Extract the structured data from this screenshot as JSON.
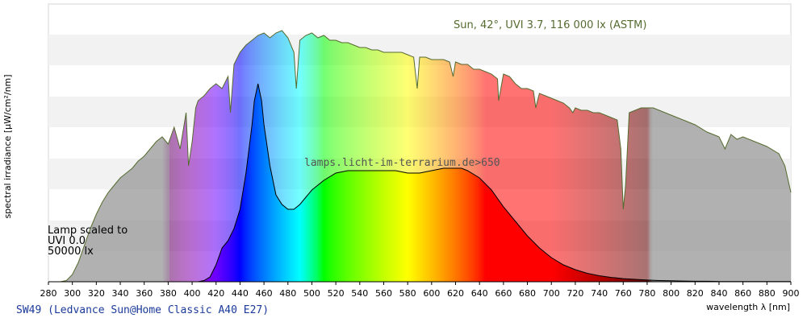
{
  "chart_data": {
    "type": "area",
    "title": "Sun, 42°, UVI 3.7, 116 000 lx (ASTM)",
    "watermark": "lamps.licht-im-terrarium.de>650",
    "lamp_note": [
      "Lamp scaled to",
      "UVI 0.0",
      "50000 lx"
    ],
    "xlabel": "wavelength λ [nm]",
    "ylabel": "spectral irradiance [µW/cm²/nm]",
    "xlim": [
      280,
      900
    ],
    "x_ticks": [
      280,
      300,
      320,
      340,
      360,
      380,
      400,
      420,
      440,
      460,
      480,
      500,
      520,
      540,
      560,
      580,
      600,
      620,
      640,
      660,
      680,
      700,
      720,
      740,
      760,
      780,
      800,
      820,
      840,
      860,
      880,
      900
    ],
    "ylim": [
      0,
      1
    ],
    "grid": "horizontal-bands",
    "series": [
      {
        "name": "",
        "style": "reference-sun",
        "x": [
          280,
          290,
          295,
          300,
          305,
          310,
          315,
          320,
          325,
          330,
          335,
          340,
          345,
          350,
          355,
          360,
          365,
          370,
          375,
          380,
          385,
          390,
          395,
          397,
          400,
          403,
          405,
          410,
          415,
          420,
          425,
          430,
          432,
          435,
          440,
          445,
          450,
          455,
          460,
          465,
          470,
          475,
          480,
          485,
          487,
          490,
          495,
          500,
          505,
          510,
          515,
          520,
          525,
          530,
          535,
          540,
          545,
          550,
          555,
          560,
          565,
          570,
          575,
          580,
          585,
          588,
          590,
          595,
          600,
          605,
          610,
          615,
          618,
          620,
          625,
          630,
          635,
          640,
          645,
          650,
          655,
          656,
          660,
          665,
          670,
          675,
          680,
          685,
          687,
          690,
          695,
          700,
          705,
          710,
          715,
          718,
          720,
          725,
          730,
          735,
          740,
          745,
          750,
          755,
          758,
          760,
          762,
          765,
          770,
          775,
          780,
          785,
          790,
          795,
          800,
          810,
          820,
          830,
          840,
          845,
          850,
          855,
          860,
          870,
          880,
          890,
          895,
          900
        ],
        "y": [
          0,
          0,
          0.005,
          0.03,
          0.08,
          0.15,
          0.22,
          0.28,
          0.33,
          0.37,
          0.4,
          0.43,
          0.45,
          0.47,
          0.5,
          0.52,
          0.55,
          0.58,
          0.6,
          0.57,
          0.64,
          0.55,
          0.7,
          0.48,
          0.58,
          0.72,
          0.75,
          0.77,
          0.8,
          0.82,
          0.8,
          0.85,
          0.7,
          0.9,
          0.95,
          0.98,
          1.0,
          1.02,
          1.03,
          1.01,
          1.03,
          1.04,
          1.01,
          0.95,
          0.8,
          1.0,
          1.02,
          1.03,
          1.01,
          1.02,
          1.0,
          1.0,
          0.99,
          0.99,
          0.98,
          0.97,
          0.97,
          0.96,
          0.96,
          0.95,
          0.95,
          0.95,
          0.95,
          0.94,
          0.93,
          0.8,
          0.93,
          0.93,
          0.92,
          0.92,
          0.92,
          0.91,
          0.85,
          0.91,
          0.9,
          0.9,
          0.88,
          0.88,
          0.87,
          0.86,
          0.84,
          0.75,
          0.86,
          0.85,
          0.82,
          0.8,
          0.8,
          0.79,
          0.72,
          0.78,
          0.77,
          0.76,
          0.75,
          0.74,
          0.72,
          0.7,
          0.72,
          0.71,
          0.71,
          0.7,
          0.7,
          0.69,
          0.68,
          0.67,
          0.55,
          0.3,
          0.4,
          0.7,
          0.71,
          0.72,
          0.72,
          0.72,
          0.71,
          0.7,
          0.69,
          0.67,
          0.65,
          0.62,
          0.6,
          0.55,
          0.61,
          0.59,
          0.6,
          0.58,
          0.56,
          0.53,
          0.48,
          0.37
        ]
      },
      {
        "name": "SW49 (Ledvance Sun@Home Classic A40 E27)",
        "style": "lamp",
        "x": [
          405,
          410,
          415,
          420,
          425,
          430,
          435,
          440,
          445,
          450,
          452,
          455,
          458,
          460,
          465,
          470,
          475,
          480,
          485,
          490,
          495,
          500,
          510,
          520,
          530,
          540,
          550,
          560,
          570,
          580,
          590,
          600,
          610,
          620,
          625,
          630,
          640,
          650,
          660,
          670,
          680,
          690,
          700,
          710,
          720,
          730,
          740,
          750,
          760,
          770,
          780,
          790,
          800,
          810,
          820,
          830,
          840,
          850,
          860,
          870,
          880,
          890,
          900
        ],
        "y": [
          0,
          0.005,
          0.02,
          0.07,
          0.14,
          0.17,
          0.22,
          0.3,
          0.45,
          0.65,
          0.75,
          0.82,
          0.75,
          0.65,
          0.48,
          0.36,
          0.32,
          0.3,
          0.3,
          0.32,
          0.35,
          0.38,
          0.42,
          0.45,
          0.46,
          0.46,
          0.46,
          0.46,
          0.46,
          0.45,
          0.45,
          0.46,
          0.47,
          0.47,
          0.47,
          0.46,
          0.43,
          0.38,
          0.31,
          0.25,
          0.19,
          0.14,
          0.1,
          0.07,
          0.05,
          0.035,
          0.025,
          0.018,
          0.013,
          0.01,
          0.007,
          0.005,
          0.004,
          0.003,
          0.002,
          0.002,
          0.001,
          0.001,
          0.001,
          0.001,
          0.001,
          0.001,
          0.001
        ]
      }
    ]
  },
  "footer": {
    "lamp_name": "SW49 (Ledvance Sun@Home Classic A40 E27)"
  },
  "colors": {
    "grid_band": "#f2f2f2",
    "sun_outline": "#556b2f",
    "lamp_outline": "#000000",
    "uv_overlay": "#a6a6a6",
    "ir_overlay": "#a6a6a6"
  }
}
